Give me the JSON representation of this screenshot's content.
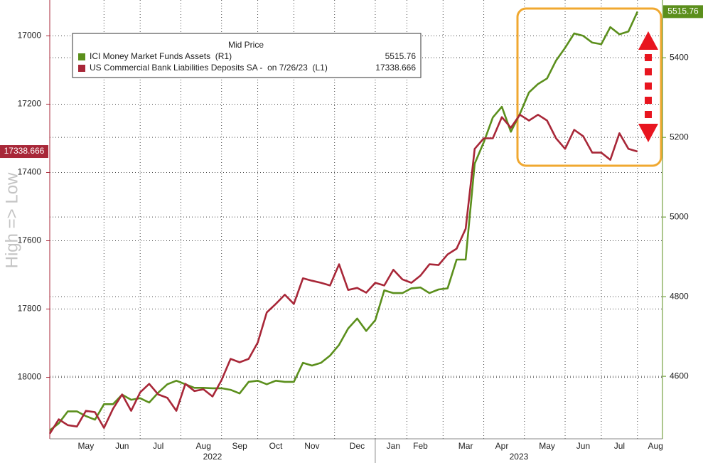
{
  "chart_data": {
    "type": "line",
    "y_label": "High => Low",
    "legend_title": "Mid Price",
    "y_inverted": true,
    "grid": true,
    "categories": [
      null,
      null,
      null,
      null,
      "May",
      null,
      null,
      null,
      "Jun",
      null,
      null,
      null,
      "Jul",
      null,
      null,
      null,
      null,
      "Aug",
      null,
      null,
      null,
      "Sep",
      null,
      null,
      null,
      "Oct",
      null,
      null,
      null,
      "Nov",
      null,
      null,
      null,
      null,
      "Dec",
      null,
      null,
      null,
      "Jan",
      null,
      null,
      "Feb",
      null,
      null,
      null,
      null,
      "Mar",
      null,
      null,
      null,
      "Apr",
      null,
      null,
      null,
      null,
      "May",
      null,
      null,
      null,
      "Jun",
      null,
      null,
      null,
      "Jul",
      null,
      null,
      null,
      "Aug"
    ],
    "years": [
      "2022",
      "2023"
    ],
    "ylim": [
      16895,
      18180
    ],
    "yticks": [
      17000,
      17200,
      17400,
      17600,
      17800,
      18000
    ],
    "y2lim": [
      4443,
      5545
    ],
    "y2ticks": [
      4600,
      4800,
      5000,
      5200,
      5400
    ],
    "series": [
      {
        "name": "ICI Money Market Funds Assets  (R1)",
        "color": "#5b8f1c",
        "axis": "y2",
        "values": [
          4464,
          4482,
          4512,
          4512,
          4500,
          4491,
          4530,
          4530,
          4554,
          4541,
          4545,
          4534,
          4559,
          4580,
          4589,
          4580,
          4571,
          4571,
          4570,
          4570,
          4566,
          4557,
          4586,
          4589,
          4580,
          4589,
          4586,
          4586,
          4634,
          4627,
          4634,
          4652,
          4679,
          4720,
          4745,
          4714,
          4741,
          4816,
          4809,
          4809,
          4821,
          4823,
          4809,
          4818,
          4821,
          4893,
          4893,
          5134,
          5188,
          5250,
          5277,
          5214,
          5259,
          5313,
          5334,
          5348,
          5393,
          5425,
          5461,
          5455,
          5438,
          5434,
          5477,
          5459,
          5466,
          5515.76,
          null,
          null
        ]
      },
      {
        "name": "US Commercial Bank Liabilities Deposits SA -  on 7/26/23  (L1)",
        "color": "#a82738",
        "axis": "y",
        "values": [
          18165,
          18123,
          18140,
          18144,
          18098,
          18102,
          18148,
          18092,
          18050,
          18098,
          18044,
          18019,
          18050,
          18060,
          18098,
          18019,
          18040,
          18035,
          18056,
          18008,
          17946,
          17956,
          17946,
          17898,
          17810,
          17785,
          17758,
          17785,
          17710,
          17717,
          17723,
          17731,
          17669,
          17744,
          17738,
          17752,
          17723,
          17731,
          17685,
          17713,
          17723,
          17702,
          17669,
          17671,
          17640,
          17623,
          17565,
          17331,
          17300,
          17300,
          17238,
          17269,
          17231,
          17248,
          17231,
          17248,
          17300,
          17331,
          17275,
          17294,
          17342,
          17342,
          17363,
          17285,
          17331,
          17338.666,
          null,
          null
        ]
      }
    ]
  }
}
